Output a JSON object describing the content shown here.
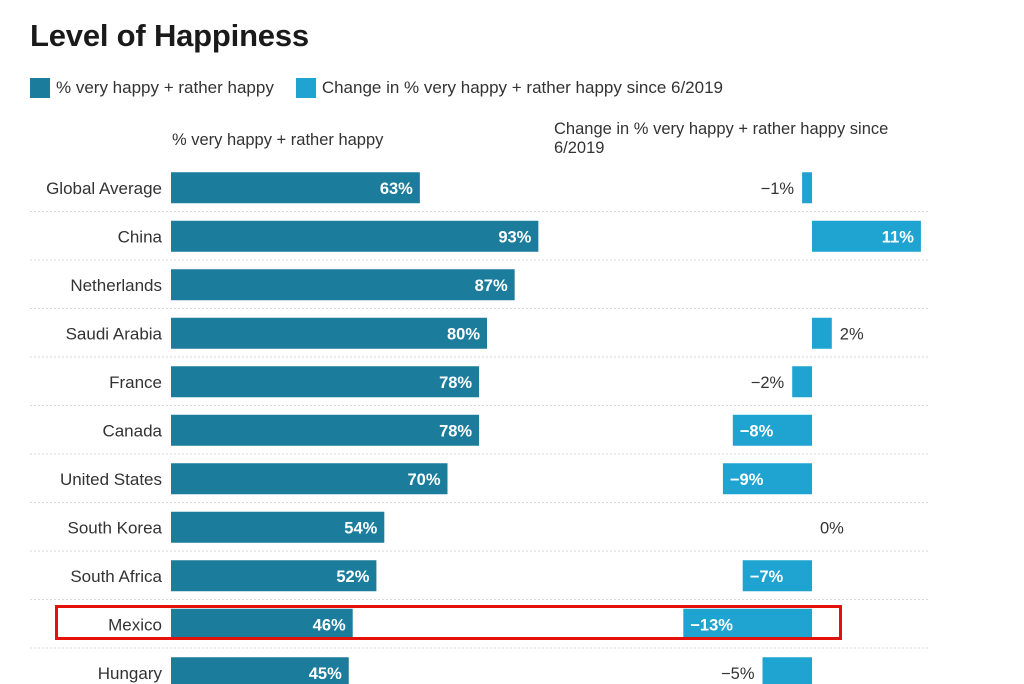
{
  "title": "Level of Happiness",
  "legend": [
    {
      "label": "% very happy + rather happy",
      "color": "#1c7c9c"
    },
    {
      "label": "Change in % very happy + rather happy since 6/2019",
      "color": "#1fa4d2"
    }
  ],
  "columns": {
    "left": "% very happy + rather happy",
    "right": "Change in % very happy + rather happy since 6/2019"
  },
  "highlighted_row": "Mexico",
  "chart_data": {
    "type": "bar",
    "categories": [
      "Global Average",
      "China",
      "Netherlands",
      "Saudi Arabia",
      "France",
      "Canada",
      "United States",
      "South Korea",
      "South Africa",
      "Mexico",
      "Hungary"
    ],
    "series": [
      {
        "name": "% very happy + rather happy",
        "values": [
          63,
          93,
          87,
          80,
          78,
          78,
          70,
          54,
          52,
          46,
          45
        ],
        "labels": [
          "63%",
          "93%",
          "87%",
          "80%",
          "78%",
          "78%",
          "70%",
          "54%",
          "52%",
          "46%",
          "45%"
        ],
        "color": "#1c7c9c"
      },
      {
        "name": "Change in % very happy + rather happy since 6/2019",
        "values": [
          -1,
          11,
          null,
          2,
          -2,
          -8,
          -9,
          0,
          -7,
          -13,
          -5
        ],
        "labels": [
          "−1%",
          "11%",
          "",
          "2%",
          "−2%",
          "−8%",
          "−9%",
          "0%",
          "−7%",
          "−13%",
          "−5%"
        ],
        "color": "#1fa4d2"
      }
    ],
    "grid": false,
    "legend_position": "top-left"
  }
}
